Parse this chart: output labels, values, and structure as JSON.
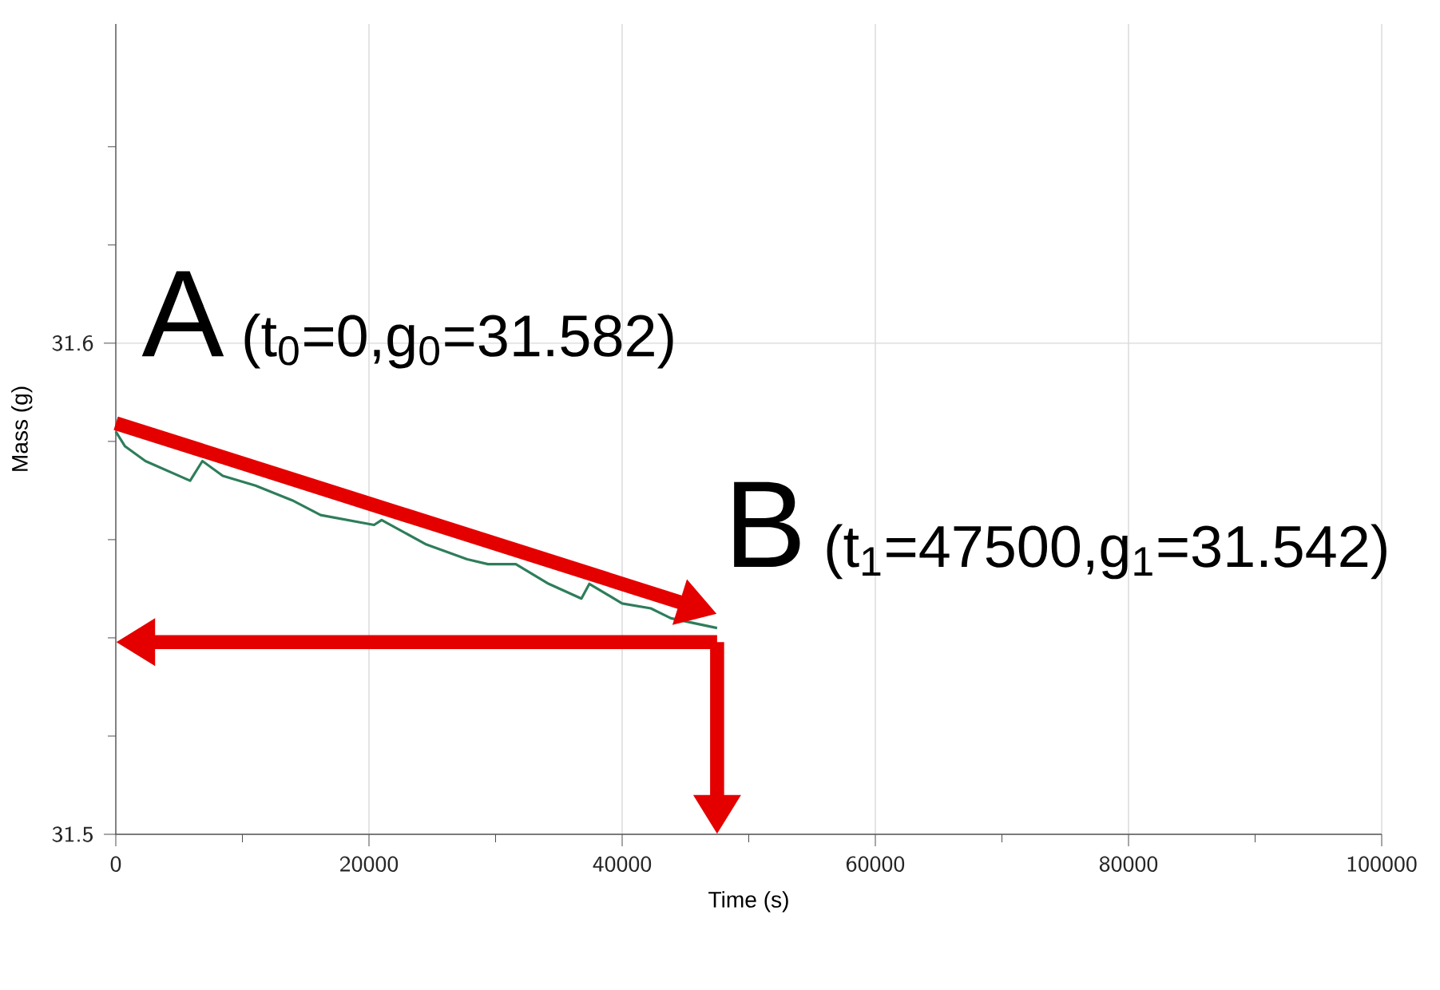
{
  "chart_data": {
    "type": "line",
    "xlabel": "Time (s)",
    "ylabel": "Mass (g)",
    "x": [
      0,
      730,
      2340,
      5870,
      6840,
      8450,
      11040,
      13940,
      16180,
      20400,
      21000,
      24540,
      27760,
      29400,
      31600,
      34200,
      36780,
      37410,
      40000,
      42270,
      43850,
      47500
    ],
    "series": [
      {
        "color": "#2e7d5b",
        "values": [
          31.582,
          31.579,
          31.576,
          31.572,
          31.576,
          31.573,
          31.571,
          31.568,
          31.565,
          31.563,
          31.564,
          31.559,
          31.556,
          31.555,
          31.555,
          31.551,
          31.548,
          31.551,
          31.547,
          31.546,
          31.544,
          31.542
        ]
      }
    ],
    "xlim": [
      0,
      100000
    ],
    "ylim": [
      31.5,
      31.665
    ],
    "xticks": [
      0,
      {
        "value": 10000,
        "label": null
      },
      20000,
      {
        "value": 30000,
        "label": null
      },
      40000,
      {
        "value": 50000,
        "label": null
      },
      60000,
      {
        "value": 70000,
        "label": null
      },
      80000,
      {
        "value": 90000,
        "label": null
      },
      100000
    ],
    "yticks": [
      31.5,
      {
        "value": 31.52,
        "label": null
      },
      {
        "value": 31.54,
        "label": null
      },
      {
        "value": 31.56,
        "label": null
      },
      {
        "value": 31.58,
        "label": null
      },
      31.6,
      {
        "value": 31.62,
        "label": null
      },
      {
        "value": 31.64,
        "label": null
      }
    ],
    "grid": true,
    "marker": "none",
    "line_style": "solid",
    "annotations": [
      "A",
      "(t$_{0}$=0,g$_{0}$=31.582)",
      "B",
      "(t$_{1}$=47500,g$_{1}$=31.542)"
    ]
  }
}
